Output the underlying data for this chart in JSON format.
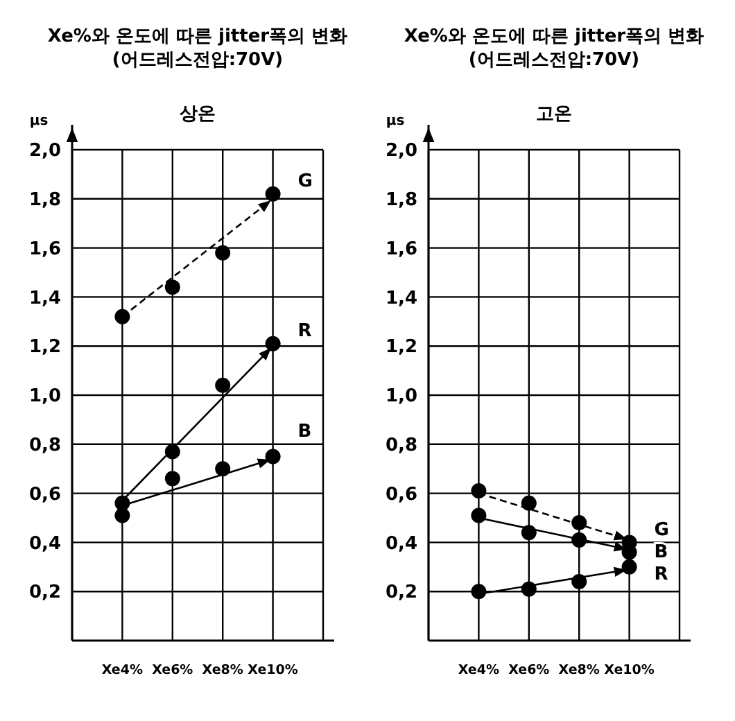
{
  "chart_data": [
    {
      "type": "scatter",
      "title": "Xe%와 온도에 따른 jitter폭의 변화\n(어드레스전압:70V)",
      "subtitle": "상온",
      "ylabel": "μs",
      "categories": [
        "Xe4%",
        "Xe6%",
        "Xe8%",
        "Xe10%"
      ],
      "ylim": [
        0,
        2
      ],
      "yticks": [
        {
          "value": 0.2,
          "label": "0,2"
        },
        {
          "value": 0.4,
          "label": "0,4"
        },
        {
          "value": 0.6,
          "label": "0,6"
        },
        {
          "value": 0.8,
          "label": "0,8"
        },
        {
          "value": 1.0,
          "label": "1,0"
        },
        {
          "value": 1.2,
          "label": "1,2"
        },
        {
          "value": 1.4,
          "label": "1,4"
        },
        {
          "value": 1.6,
          "label": "1,6"
        },
        {
          "value": 1.8,
          "label": "1,8"
        },
        {
          "value": 2.0,
          "label": "2,0"
        }
      ],
      "grid": true,
      "series": [
        {
          "name": "G",
          "color": "#000000",
          "marker": "circle",
          "values": [
            1.32,
            1.44,
            1.58,
            1.82
          ]
        },
        {
          "name": "R",
          "color": "#000000",
          "marker": "circle",
          "values": [
            0.56,
            0.77,
            1.04,
            1.21
          ]
        },
        {
          "name": "B",
          "color": "#000000",
          "marker": "circle",
          "values": [
            0.51,
            0.66,
            0.7,
            0.75
          ]
        },
        {
          "type": "line",
          "color": "#000000",
          "marker": "none",
          "line_style": "dashed",
          "x": [
            "Xe4%",
            "Xe10%"
          ],
          "values": [
            1.32,
            1.8
          ]
        },
        {
          "type": "line",
          "color": "#000000",
          "marker": "none",
          "line_style": "solid",
          "x": [
            "Xe4%",
            "Xe10%"
          ],
          "values": [
            0.57,
            1.2
          ]
        },
        {
          "type": "line",
          "color": "#000000",
          "marker": "none",
          "line_style": "solid",
          "x": [
            "Xe4%",
            "Xe10%"
          ],
          "values": [
            0.55,
            0.74
          ]
        }
      ]
    },
    {
      "type": "scatter",
      "title": "Xe%와 온도에 따른 jitter폭의 변화\n(어드레스전압:70V)",
      "subtitle": "고온",
      "ylabel": "μs",
      "categories": [
        "Xe4%",
        "Xe6%",
        "Xe8%",
        "Xe10%"
      ],
      "ylim": [
        0,
        2
      ],
      "yticks": [
        {
          "value": 0.2,
          "label": "0,2"
        },
        {
          "value": 0.4,
          "label": "0,4"
        },
        {
          "value": 0.6,
          "label": "0,6"
        },
        {
          "value": 0.8,
          "label": "0,8"
        },
        {
          "value": 1.0,
          "label": "1,0"
        },
        {
          "value": 1.2,
          "label": "1,2"
        },
        {
          "value": 1.4,
          "label": "1,4"
        },
        {
          "value": 1.6,
          "label": "1,6"
        },
        {
          "value": 1.8,
          "label": "1,8"
        },
        {
          "value": 2.0,
          "label": "2,0"
        }
      ],
      "grid": true,
      "series": [
        {
          "name": "G",
          "color": "#000000",
          "marker": "circle",
          "values": [
            0.61,
            0.56,
            0.48,
            0.4
          ]
        },
        {
          "name": "B",
          "color": "#000000",
          "marker": "circle",
          "values": [
            0.51,
            0.44,
            0.41,
            0.36
          ]
        },
        {
          "name": "R",
          "color": "#000000",
          "marker": "circle",
          "values": [
            0.2,
            0.21,
            0.24,
            0.3
          ]
        },
        {
          "type": "line",
          "color": "#000000",
          "marker": "none",
          "line_style": "dashed",
          "x": [
            "Xe4%",
            "Xe10%"
          ],
          "values": [
            0.6,
            0.41
          ]
        },
        {
          "type": "line",
          "color": "#000000",
          "marker": "none",
          "line_style": "solid",
          "x": [
            "Xe4%",
            "Xe10%"
          ],
          "values": [
            0.5,
            0.37
          ]
        },
        {
          "type": "line",
          "color": "#000000",
          "marker": "none",
          "line_style": "solid",
          "x": [
            "Xe4%",
            "Xe10%"
          ],
          "values": [
            0.19,
            0.29
          ]
        }
      ]
    }
  ]
}
